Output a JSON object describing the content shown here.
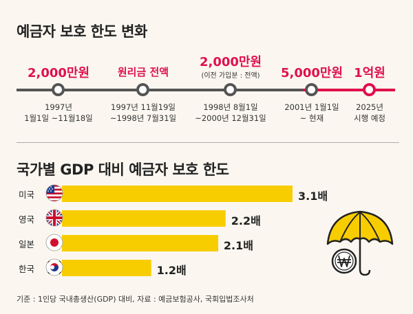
{
  "title_timeline": "예금자 보호 한도 변화",
  "timeline": [
    {
      "amount": "2,000만원",
      "sub": "",
      "date_line1": "1997년",
      "date_line2": "1월1일 ~11월18일"
    },
    {
      "amount": "원리금 전액",
      "sub": "",
      "date_line1": "1997년 11월19일",
      "date_line2": "~1998년 7월31일"
    },
    {
      "amount": "2,000만원",
      "sub": "(이전 가입분 : 전액)",
      "date_line1": "1998년 8월1일",
      "date_line2": "~2000년 12월31일"
    },
    {
      "amount": "5,000만원",
      "sub": "",
      "date_line1": "2001년 1월1일",
      "date_line2": "~ 현재"
    },
    {
      "amount": "1억원",
      "sub": "",
      "date_line1": "2025년",
      "date_line2": "시행 예정"
    }
  ],
  "title_chart": "국가별 GDP 대비 예금자 보호 한도",
  "chart_data": {
    "type": "bar",
    "orientation": "horizontal",
    "title": "국가별 GDP 대비 예금자 보호 한도",
    "categories": [
      "미국",
      "영국",
      "일본",
      "한국"
    ],
    "values": [
      3.1,
      2.2,
      2.1,
      1.2
    ],
    "value_labels": [
      "3.1배",
      "2.2배",
      "2.1배",
      "1.2배"
    ],
    "unit": "배",
    "bar_color": "#f7cd00",
    "xlim": [
      0,
      3.1
    ]
  },
  "footnote": "기준 : 1인당 국내총생산(GDP) 대비, 자료 : 예금보험공사, 국회입법조사처",
  "colors": {
    "accent": "#e0104b",
    "bar": "#f7cd00",
    "timeline": "#555555"
  },
  "icons": [
    "us-flag-icon",
    "uk-flag-icon",
    "japan-flag-icon",
    "korea-flag-icon",
    "umbrella-won-icon"
  ]
}
